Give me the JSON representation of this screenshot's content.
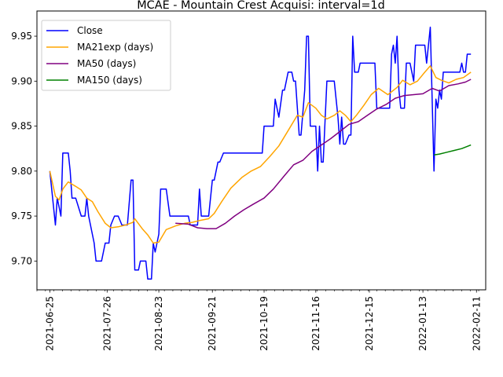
{
  "chart_data": {
    "type": "line",
    "title": "MCAE - Mountain Crest Acquisi: interval=1d",
    "xlabel": "",
    "ylabel": "",
    "x_tick_labels": [
      "2021-06-25",
      "2021-07-26",
      "2021-08-23",
      "2021-09-21",
      "2021-10-19",
      "2021-11-16",
      "2021-12-15",
      "2022-01-13",
      "2022-02-11"
    ],
    "y_tick_labels": [
      "9.70",
      "9.75",
      "9.80",
      "9.85",
      "9.90",
      "9.95"
    ],
    "xlim": [
      "2021-06-18",
      "2022-02-16"
    ],
    "ylim": [
      9.668,
      9.978
    ],
    "grid": false,
    "legend_position": "top-left",
    "series": [
      {
        "name": "Close",
        "color": "#0000ff",
        "points": [
          [
            "2021-06-25",
            9.8
          ],
          [
            "2021-06-28",
            9.74
          ],
          [
            "2021-06-29",
            9.77
          ],
          [
            "2021-06-30",
            9.76
          ],
          [
            "2021-07-01",
            9.75
          ],
          [
            "2021-07-02",
            9.82
          ],
          [
            "2021-07-05",
            9.82
          ],
          [
            "2021-07-06",
            9.8
          ],
          [
            "2021-07-07",
            9.77
          ],
          [
            "2021-07-09",
            9.77
          ],
          [
            "2021-07-12",
            9.75
          ],
          [
            "2021-07-14",
            9.75
          ],
          [
            "2021-07-15",
            9.77
          ],
          [
            "2021-07-16",
            9.75
          ],
          [
            "2021-07-19",
            9.72
          ],
          [
            "2021-07-20",
            9.7
          ],
          [
            "2021-07-23",
            9.7
          ],
          [
            "2021-07-25",
            9.72
          ],
          [
            "2021-07-27",
            9.72
          ],
          [
            "2021-07-28",
            9.74
          ],
          [
            "2021-07-30",
            9.75
          ],
          [
            "2021-08-01",
            9.75
          ],
          [
            "2021-08-03",
            9.74
          ],
          [
            "2021-08-06",
            9.74
          ],
          [
            "2021-08-08",
            9.79
          ],
          [
            "2021-08-09",
            9.79
          ],
          [
            "2021-08-10",
            9.69
          ],
          [
            "2021-08-12",
            9.69
          ],
          [
            "2021-08-13",
            9.7
          ],
          [
            "2021-08-16",
            9.7
          ],
          [
            "2021-08-17",
            9.68
          ],
          [
            "2021-08-19",
            9.68
          ],
          [
            "2021-08-20",
            9.72
          ],
          [
            "2021-08-21",
            9.71
          ],
          [
            "2021-08-23",
            9.73
          ],
          [
            "2021-08-24",
            9.78
          ],
          [
            "2021-08-27",
            9.78
          ],
          [
            "2021-08-29",
            9.75
          ],
          [
            "2021-09-08",
            9.75
          ],
          [
            "2021-09-09",
            9.74
          ],
          [
            "2021-09-13",
            9.74
          ],
          [
            "2021-09-14",
            9.78
          ],
          [
            "2021-09-15",
            9.75
          ],
          [
            "2021-09-19",
            9.75
          ],
          [
            "2021-09-21",
            9.79
          ],
          [
            "2021-09-22",
            9.79
          ],
          [
            "2021-09-24",
            9.81
          ],
          [
            "2021-09-25",
            9.81
          ],
          [
            "2021-09-27",
            9.82
          ],
          [
            "2021-10-18",
            9.82
          ],
          [
            "2021-10-19",
            9.85
          ],
          [
            "2021-10-24",
            9.85
          ],
          [
            "2021-10-25",
            9.88
          ],
          [
            "2021-10-27",
            9.86
          ],
          [
            "2021-10-29",
            9.89
          ],
          [
            "2021-10-30",
            9.89
          ],
          [
            "2021-11-01",
            9.91
          ],
          [
            "2021-11-03",
            9.91
          ],
          [
            "2021-11-04",
            9.9
          ],
          [
            "2021-11-05",
            9.9
          ],
          [
            "2021-11-07",
            9.84
          ],
          [
            "2021-11-08",
            9.84
          ],
          [
            "2021-11-10",
            9.89
          ],
          [
            "2021-11-11",
            9.95
          ],
          [
            "2021-11-12",
            9.95
          ],
          [
            "2021-11-13",
            9.85
          ],
          [
            "2021-11-16",
            9.85
          ],
          [
            "2021-11-17",
            9.8
          ],
          [
            "2021-11-18",
            9.85
          ],
          [
            "2021-11-19",
            9.81
          ],
          [
            "2021-11-20",
            9.81
          ],
          [
            "2021-11-22",
            9.9
          ],
          [
            "2021-11-26",
            9.9
          ],
          [
            "2021-11-28",
            9.86
          ],
          [
            "2021-11-29",
            9.83
          ],
          [
            "2021-11-30",
            9.86
          ],
          [
            "2021-12-01",
            9.83
          ],
          [
            "2021-12-02",
            9.83
          ],
          [
            "2021-12-04",
            9.84
          ],
          [
            "2021-12-05",
            9.84
          ],
          [
            "2021-12-06",
            9.95
          ],
          [
            "2021-12-07",
            9.91
          ],
          [
            "2021-12-09",
            9.91
          ],
          [
            "2021-12-10",
            9.92
          ],
          [
            "2021-12-18",
            9.92
          ],
          [
            "2021-12-19",
            9.87
          ],
          [
            "2021-12-26",
            9.87
          ],
          [
            "2021-12-27",
            9.93
          ],
          [
            "2021-12-28",
            9.94
          ],
          [
            "2021-12-29",
            9.92
          ],
          [
            "2021-12-30",
            9.95
          ],
          [
            "2021-12-31",
            9.89
          ],
          [
            "2022-01-01",
            9.87
          ],
          [
            "2022-01-03",
            9.87
          ],
          [
            "2022-01-04",
            9.92
          ],
          [
            "2022-01-06",
            9.92
          ],
          [
            "2022-01-08",
            9.9
          ],
          [
            "2022-01-09",
            9.94
          ],
          [
            "2022-01-12",
            9.94
          ],
          [
            "2022-01-14",
            9.94
          ],
          [
            "2022-01-15",
            9.92
          ],
          [
            "2022-01-17",
            9.96
          ],
          [
            "2022-01-19",
            9.8
          ],
          [
            "2022-01-20",
            9.88
          ],
          [
            "2022-01-21",
            9.87
          ],
          [
            "2022-01-22",
            9.89
          ],
          [
            "2022-01-23",
            9.88
          ],
          [
            "2022-01-24",
            9.91
          ],
          [
            "2022-01-27",
            9.91
          ],
          [
            "2022-01-30",
            9.91
          ],
          [
            "2022-01-31",
            9.91
          ],
          [
            "2022-02-02",
            9.91
          ],
          [
            "2022-02-03",
            9.92
          ],
          [
            "2022-02-04",
            9.91
          ],
          [
            "2022-02-05",
            9.91
          ],
          [
            "2022-02-06",
            9.93
          ],
          [
            "2022-02-08",
            9.93
          ]
        ]
      },
      {
        "name": "MA21exp (days)",
        "color": "#ffa500",
        "points": [
          [
            "2021-06-25",
            9.8
          ],
          [
            "2021-06-28",
            9.772
          ],
          [
            "2021-06-30",
            9.768
          ],
          [
            "2021-07-02",
            9.78
          ],
          [
            "2021-07-05",
            9.788
          ],
          [
            "2021-07-09",
            9.783
          ],
          [
            "2021-07-12",
            9.779
          ],
          [
            "2021-07-15",
            9.77
          ],
          [
            "2021-07-18",
            9.766
          ],
          [
            "2021-07-21",
            9.755
          ],
          [
            "2021-07-25",
            9.742
          ],
          [
            "2021-07-28",
            9.737
          ],
          [
            "2021-08-01",
            9.738
          ],
          [
            "2021-08-05",
            9.74
          ],
          [
            "2021-08-09",
            9.743
          ],
          [
            "2021-08-10",
            9.747
          ],
          [
            "2021-08-14",
            9.736
          ],
          [
            "2021-08-17",
            9.729
          ],
          [
            "2021-08-20",
            9.72
          ],
          [
            "2021-08-23",
            9.721
          ],
          [
            "2021-08-27",
            9.735
          ],
          [
            "2021-09-01",
            9.739
          ],
          [
            "2021-09-06",
            9.742
          ],
          [
            "2021-09-10",
            9.743
          ],
          [
            "2021-09-14",
            9.745
          ],
          [
            "2021-09-19",
            9.747
          ],
          [
            "2021-09-22",
            9.753
          ],
          [
            "2021-09-26",
            9.766
          ],
          [
            "2021-10-01",
            9.781
          ],
          [
            "2021-10-07",
            9.793
          ],
          [
            "2021-10-12",
            9.8
          ],
          [
            "2021-10-17",
            9.805
          ],
          [
            "2021-10-22",
            9.816
          ],
          [
            "2021-10-27",
            9.828
          ],
          [
            "2021-11-01",
            9.845
          ],
          [
            "2021-11-06",
            9.862
          ],
          [
            "2021-11-09",
            9.86
          ],
          [
            "2021-11-12",
            9.876
          ],
          [
            "2021-11-16",
            9.87
          ],
          [
            "2021-11-19",
            9.862
          ],
          [
            "2021-11-22",
            9.858
          ],
          [
            "2021-11-26",
            9.862
          ],
          [
            "2021-11-29",
            9.867
          ],
          [
            "2021-12-02",
            9.862
          ],
          [
            "2021-12-05",
            9.855
          ],
          [
            "2021-12-08",
            9.862
          ],
          [
            "2021-12-12",
            9.873
          ],
          [
            "2021-12-16",
            9.885
          ],
          [
            "2021-12-20",
            9.892
          ],
          [
            "2021-12-25",
            9.885
          ],
          [
            "2021-12-30",
            9.893
          ],
          [
            "2022-01-02",
            9.901
          ],
          [
            "2022-01-06",
            9.896
          ],
          [
            "2022-01-10",
            9.9
          ],
          [
            "2022-01-14",
            9.91
          ],
          [
            "2022-01-17",
            9.917
          ],
          [
            "2022-01-20",
            9.904
          ],
          [
            "2022-01-23",
            9.901
          ],
          [
            "2022-01-27",
            9.898
          ],
          [
            "2022-01-31",
            9.902
          ],
          [
            "2022-02-04",
            9.904
          ],
          [
            "2022-02-08",
            9.91
          ]
        ]
      },
      {
        "name": "MA50 (days)",
        "color": "#800080",
        "points": [
          [
            "2021-09-01",
            9.742
          ],
          [
            "2021-09-08",
            9.741
          ],
          [
            "2021-09-13",
            9.737
          ],
          [
            "2021-09-18",
            9.736
          ],
          [
            "2021-09-23",
            9.736
          ],
          [
            "2021-09-28",
            9.742
          ],
          [
            "2021-10-03",
            9.75
          ],
          [
            "2021-10-08",
            9.757
          ],
          [
            "2021-10-13",
            9.763
          ],
          [
            "2021-10-19",
            9.77
          ],
          [
            "2021-10-24",
            9.78
          ],
          [
            "2021-10-30",
            9.795
          ],
          [
            "2021-11-04",
            9.807
          ],
          [
            "2021-11-09",
            9.812
          ],
          [
            "2021-11-14",
            9.822
          ],
          [
            "2021-11-19",
            9.829
          ],
          [
            "2021-11-24",
            9.836
          ],
          [
            "2021-11-29",
            9.844
          ],
          [
            "2021-12-04",
            9.852
          ],
          [
            "2021-12-09",
            9.855
          ],
          [
            "2021-12-14",
            9.862
          ],
          [
            "2021-12-19",
            9.869
          ],
          [
            "2021-12-24",
            9.874
          ],
          [
            "2021-12-29",
            9.881
          ],
          [
            "2022-01-03",
            9.884
          ],
          [
            "2022-01-08",
            9.885
          ],
          [
            "2022-01-13",
            9.886
          ],
          [
            "2022-01-18",
            9.892
          ],
          [
            "2022-01-22",
            9.889
          ],
          [
            "2022-01-27",
            9.895
          ],
          [
            "2022-02-01",
            9.897
          ],
          [
            "2022-02-05",
            9.899
          ],
          [
            "2022-02-08",
            9.902
          ]
        ]
      },
      {
        "name": "MA150 (days)",
        "color": "#008000",
        "points": [
          [
            "2022-01-19",
            9.818
          ],
          [
            "2022-01-22",
            9.819
          ],
          [
            "2022-01-26",
            9.821
          ],
          [
            "2022-01-30",
            9.823
          ],
          [
            "2022-02-03",
            9.825
          ],
          [
            "2022-02-08",
            9.829
          ]
        ]
      }
    ]
  }
}
